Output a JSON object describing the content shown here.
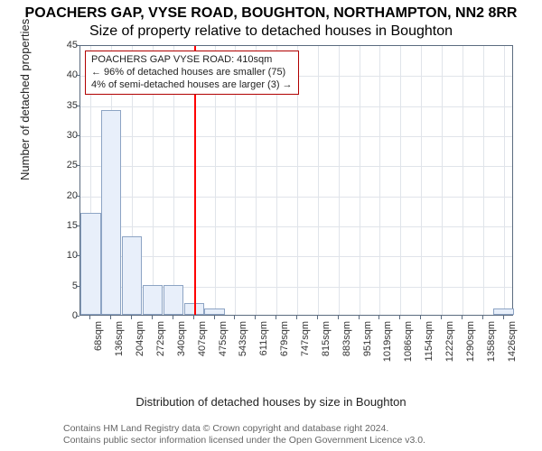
{
  "title": "POACHERS GAP, VYSE ROAD, BOUGHTON, NORTHAMPTON, NN2 8RR",
  "subtitle": "Size of property relative to detached houses in Boughton",
  "chart": {
    "type": "histogram",
    "ylabel": "Number of detached properties",
    "xlabel": "Distribution of detached houses by size in Boughton",
    "ylim": [
      0,
      45
    ],
    "ytick_step": 5,
    "xcategories": [
      "68sqm",
      "136sqm",
      "204sqm",
      "272sqm",
      "340sqm",
      "407sqm",
      "475sqm",
      "543sqm",
      "611sqm",
      "679sqm",
      "747sqm",
      "815sqm",
      "883sqm",
      "951sqm",
      "1019sqm",
      "1086sqm",
      "1154sqm",
      "1222sqm",
      "1290sqm",
      "1358sqm",
      "1426sqm"
    ],
    "values": [
      17,
      34,
      13,
      5,
      5,
      2,
      1,
      0,
      0,
      0,
      0,
      0,
      0,
      0,
      0,
      0,
      0,
      0,
      0,
      0,
      1
    ],
    "bar_fill": "#e8effa",
    "bar_border": "#8da4c4",
    "axis_color": "#5b6b7f",
    "grid_color": "#e0e4ea",
    "background_color": "#ffffff",
    "label_fontsize": 13,
    "tick_fontsize": 11,
    "reference_line": {
      "x_category_index": 5,
      "color": "#ff0000",
      "width": 2
    },
    "annotation": {
      "border_color": "#b00000",
      "lines": [
        "POACHERS GAP VYSE ROAD: 410sqm",
        "← 96% of detached houses are smaller (75)",
        "4% of semi-detached houses are larger (3) →"
      ]
    }
  },
  "footer": {
    "line1": "Contains HM Land Registry data © Crown copyright and database right 2024.",
    "line2": "Contains public sector information licensed under the Open Government Licence v3.0."
  }
}
